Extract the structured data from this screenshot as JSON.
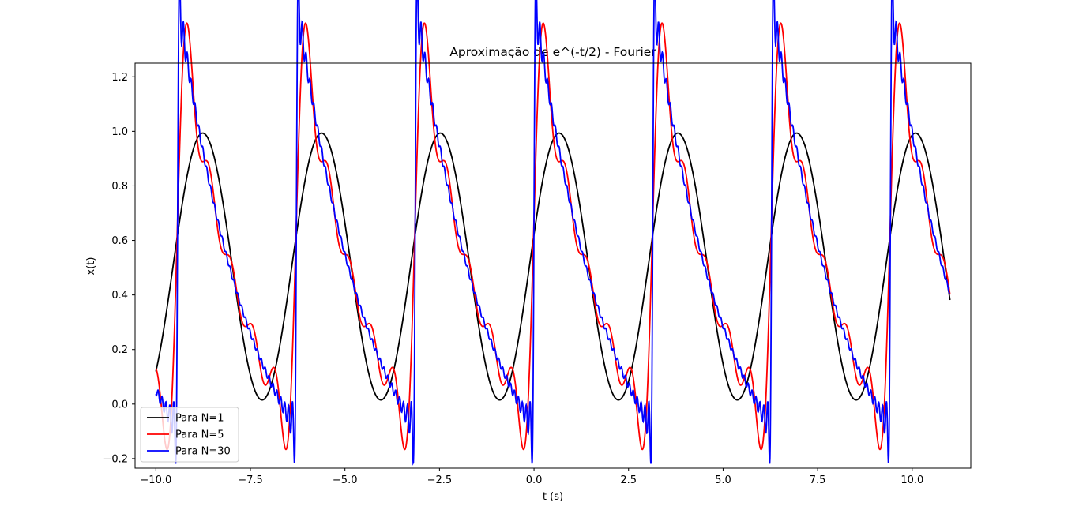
{
  "chart_data": {
    "type": "line",
    "title": "Aproximação de e^(-t/2) - Fourier",
    "xlabel": "t (s)",
    "ylabel": "x(t)",
    "xlim": [
      -10.55,
      11.55
    ],
    "ylim": [
      -0.235,
      1.25
    ],
    "xticks": [
      -10.0,
      -7.5,
      -5.0,
      -2.5,
      0.0,
      2.5,
      5.0,
      7.5,
      10.0
    ],
    "xtick_labels": [
      "−10.0",
      "−7.5",
      "−5.0",
      "−2.5",
      "0.0",
      "2.5",
      "5.0",
      "7.5",
      "10.0"
    ],
    "yticks": [
      -0.2,
      0.0,
      0.2,
      0.4,
      0.6,
      0.8,
      1.0,
      1.2
    ],
    "ytick_labels": [
      "−0.2",
      "0.0",
      "0.2",
      "0.4",
      "0.6",
      "0.8",
      "1.0",
      "1.2"
    ],
    "grid": false,
    "legend_position": "lower-left",
    "x_range": [
      -10,
      11
    ],
    "period": 3.1416,
    "series": [
      {
        "name": "Para N=1",
        "color": "#000000",
        "harmonics": 1
      },
      {
        "name": "Para N=5",
        "color": "#ff0000",
        "harmonics": 5
      },
      {
        "name": "Para N=30",
        "color": "#0000ff",
        "harmonics": 30
      }
    ]
  }
}
